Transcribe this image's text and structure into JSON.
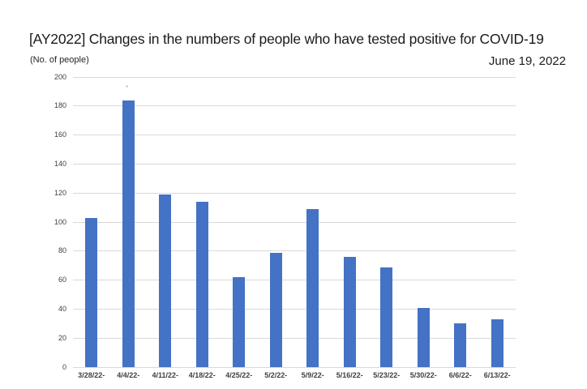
{
  "page": {
    "title": "[AY2022] Changes in the numbers of people who have tested positive for COVID-19",
    "date_label": "June 19, 2022",
    "unit_label": "(No. of people)"
  },
  "chart_data": {
    "type": "bar",
    "title": "[AY2022] Changes in the numbers of people who have tested positive for COVID-19",
    "subtitle": "June 19, 2022",
    "ylabel": "(No. of people)",
    "xlabel": "",
    "categories": [
      "3/28/22-",
      "4/4/22-",
      "4/11/22-",
      "4/18/22-",
      "4/25/22-",
      "5/2/22-",
      "5/9/22-",
      "5/16/22-",
      "5/23/22-",
      "5/30/22-",
      "6/6/22-",
      "6/13/22-"
    ],
    "values": [
      103,
      184,
      119,
      114,
      62,
      79,
      109,
      76,
      69,
      41,
      30,
      33
    ],
    "ylim": [
      0,
      200
    ],
    "ytick_step": 20,
    "grid": true,
    "legend": "none",
    "colors": {
      "bar": "#4472C4",
      "gridline": "#D9D9D9",
      "tick_label": "#404040",
      "title": "#1b1b1b"
    }
  }
}
